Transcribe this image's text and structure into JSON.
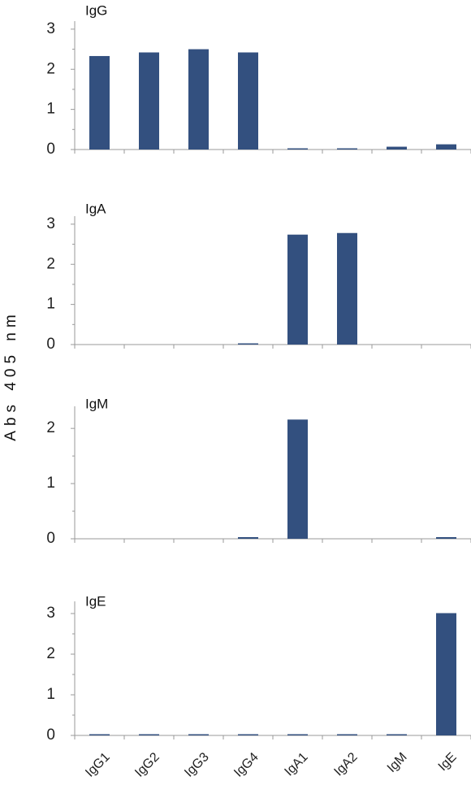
{
  "chart_data": {
    "type": "bar",
    "ylabel": "Abs 405 nm",
    "categories": [
      "IgG1",
      "IgG2",
      "IgG3",
      "IgG4",
      "IgA1",
      "IgA2",
      "IgM",
      "IgE"
    ],
    "bar_color": "#33507f",
    "grid": false,
    "panels": [
      {
        "title": "IgG",
        "yticks": [
          0,
          1,
          2,
          3
        ],
        "ylim": [
          0,
          3.2
        ],
        "values": [
          2.33,
          2.42,
          2.5,
          2.42,
          0.03,
          0.03,
          0.07,
          0.13
        ]
      },
      {
        "title": "IgA",
        "yticks": [
          0,
          1,
          2,
          3
        ],
        "ylim": [
          0,
          3.2
        ],
        "values": [
          0,
          0,
          0,
          0.03,
          2.74,
          2.78,
          0,
          0
        ]
      },
      {
        "title": "IgM",
        "yticks": [
          0,
          1,
          2
        ],
        "ylim": [
          0,
          2.4
        ],
        "values": [
          0,
          0,
          0,
          0.03,
          2.16,
          0,
          0,
          0.03
        ]
      },
      {
        "title": "IgE",
        "yticks": [
          0,
          1,
          2,
          3
        ],
        "ylim": [
          0,
          3.3
        ],
        "values": [
          0.03,
          0.03,
          0.03,
          0.03,
          0.03,
          0.03,
          0.03,
          3.01
        ]
      }
    ]
  }
}
